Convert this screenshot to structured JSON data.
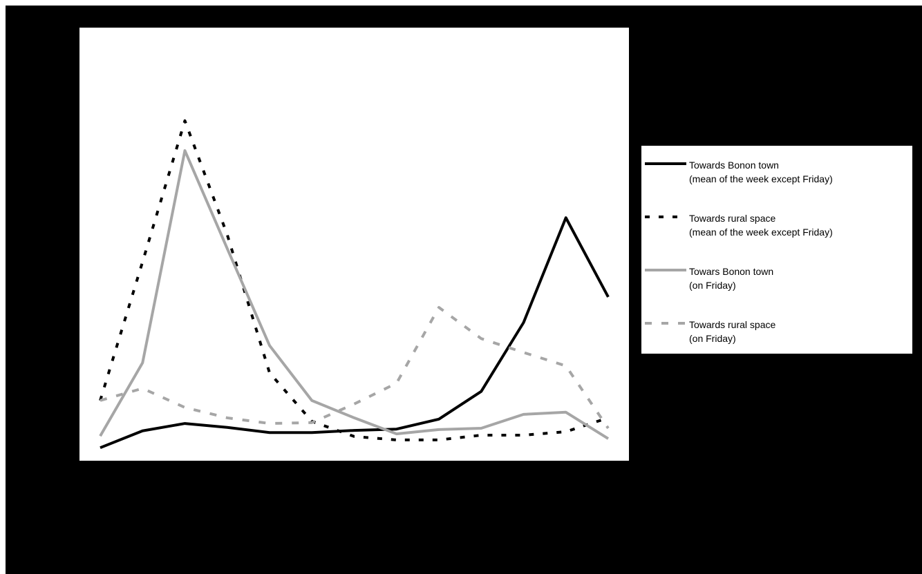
{
  "chart_data": {
    "type": "line",
    "categories": [
      null,
      null,
      null,
      null,
      null,
      null,
      null,
      null,
      null,
      null,
      null,
      null,
      null
    ],
    "ylim": [
      0,
      100
    ],
    "series": [
      {
        "name": "Towards Bonon town\n(mean of the week except Friday)",
        "color": "#000000",
        "style": "solid",
        "values": [
          3.0,
          6.9,
          8.6,
          7.7,
          6.5,
          6.5,
          7.0,
          7.3,
          9.6,
          16.0,
          31.9,
          56.1,
          37.8
        ]
      },
      {
        "name": "Towards rural space\n(mean of the week except Friday)",
        "color": "#000000",
        "style": "dashed",
        "values": [
          13.9,
          45.9,
          78.5,
          52.2,
          20.3,
          9.1,
          5.6,
          4.8,
          4.8,
          5.9,
          5.9,
          6.7,
          9.9
        ]
      },
      {
        "name": "Towars Bonon town\n(on Friday)",
        "color": "#a6a6a6",
        "style": "solid",
        "values": [
          5.7,
          22.6,
          71.6,
          49.0,
          26.6,
          13.9,
          9.9,
          6.2,
          7.2,
          7.5,
          10.7,
          11.2,
          5.1
        ]
      },
      {
        "name": "Towards rural space\n(on Friday)",
        "color": "#a6a6a6",
        "style": "dashed",
        "values": [
          13.9,
          16.7,
          12.3,
          9.9,
          8.6,
          8.8,
          13.1,
          17.9,
          35.4,
          28.2,
          25.0,
          21.9,
          7.5
        ]
      }
    ],
    "legend": "right"
  }
}
